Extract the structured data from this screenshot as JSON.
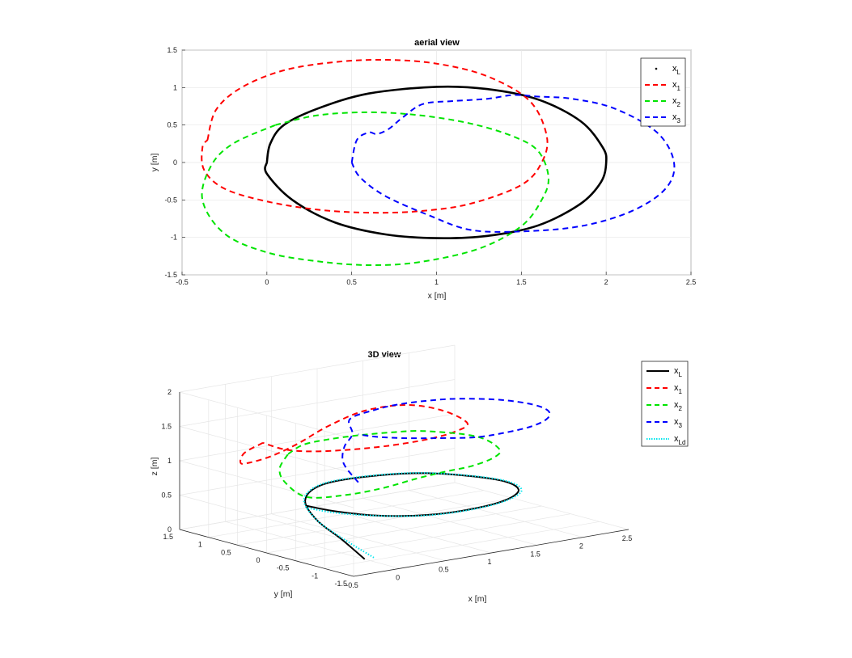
{
  "chart_data": [
    {
      "type": "line",
      "title": "aerial view",
      "xlabel": "x [m]",
      "ylabel": "y [m]",
      "xlim": [
        -0.5,
        2.5
      ],
      "ylim": [
        -1.5,
        1.5
      ],
      "xticks": [
        "-0.5",
        "0",
        "0.5",
        "1",
        "1.5",
        "2",
        "2.5"
      ],
      "yticks": [
        "-1.5",
        "-1",
        "-0.5",
        "0",
        "0.5",
        "1",
        "1.5"
      ],
      "grid": true,
      "legend_position": "top-right",
      "series": [
        {
          "name": "x",
          "sub": "L",
          "color": "#000000",
          "style": "solid-dots",
          "points": [
            [
              0,
              0
            ],
            [
              0.02,
              0.25
            ],
            [
              0.1,
              0.5
            ],
            [
              0.3,
              0.72
            ],
            [
              0.6,
              0.92
            ],
            [
              1.0,
              1.01
            ],
            [
              1.3,
              0.98
            ],
            [
              1.6,
              0.84
            ],
            [
              1.85,
              0.55
            ],
            [
              1.98,
              0.2
            ],
            [
              2.0,
              0.0
            ],
            [
              1.97,
              -0.26
            ],
            [
              1.85,
              -0.55
            ],
            [
              1.6,
              -0.84
            ],
            [
              1.3,
              -0.98
            ],
            [
              1.0,
              -1.01
            ],
            [
              0.7,
              -0.96
            ],
            [
              0.4,
              -0.8
            ],
            [
              0.15,
              -0.5
            ],
            [
              0.0,
              -0.15
            ],
            [
              0.0,
              0.0
            ]
          ]
        },
        {
          "name": "x",
          "sub": "1",
          "color": "#ff0000",
          "style": "dashed",
          "points": [
            [
              -0.35,
              0.3
            ],
            [
              -0.3,
              0.7
            ],
            [
              -0.15,
              1.0
            ],
            [
              0.1,
              1.23
            ],
            [
              0.4,
              1.34
            ],
            [
              0.7,
              1.37
            ],
            [
              1.0,
              1.32
            ],
            [
              1.3,
              1.15
            ],
            [
              1.55,
              0.82
            ],
            [
              1.65,
              0.35
            ],
            [
              1.62,
              0.0
            ],
            [
              1.5,
              -0.3
            ],
            [
              1.2,
              -0.55
            ],
            [
              0.9,
              -0.65
            ],
            [
              0.6,
              -0.67
            ],
            [
              0.3,
              -0.63
            ],
            [
              0.0,
              -0.52
            ],
            [
              -0.25,
              -0.35
            ],
            [
              -0.37,
              -0.1
            ],
            [
              -0.38,
              0.2
            ],
            [
              -0.35,
              0.3
            ]
          ]
        },
        {
          "name": "x",
          "sub": "2",
          "color": "#00e400",
          "style": "dashed",
          "points": [
            [
              0.05,
              0.5
            ],
            [
              0.3,
              0.63
            ],
            [
              0.6,
              0.67
            ],
            [
              0.9,
              0.63
            ],
            [
              1.2,
              0.52
            ],
            [
              1.45,
              0.35
            ],
            [
              1.6,
              0.15
            ],
            [
              1.66,
              -0.2
            ],
            [
              1.62,
              -0.5
            ],
            [
              1.5,
              -0.85
            ],
            [
              1.25,
              -1.15
            ],
            [
              0.9,
              -1.33
            ],
            [
              0.6,
              -1.37
            ],
            [
              0.3,
              -1.32
            ],
            [
              0.0,
              -1.2
            ],
            [
              -0.25,
              -0.95
            ],
            [
              -0.38,
              -0.5
            ],
            [
              -0.33,
              -0.05
            ],
            [
              -0.2,
              0.25
            ],
            [
              0.05,
              0.5
            ]
          ]
        },
        {
          "name": "x",
          "sub": "3",
          "color": "#0000ff",
          "style": "dashed",
          "points": [
            [
              0.5,
              0.0
            ],
            [
              0.53,
              0.3
            ],
            [
              0.6,
              0.4
            ],
            [
              0.65,
              0.38
            ],
            [
              0.72,
              0.45
            ],
            [
              0.8,
              0.6
            ],
            [
              0.92,
              0.78
            ],
            [
              1.1,
              0.82
            ],
            [
              1.3,
              0.85
            ],
            [
              1.45,
              0.9
            ],
            [
              1.6,
              0.88
            ],
            [
              1.8,
              0.85
            ],
            [
              2.05,
              0.72
            ],
            [
              2.3,
              0.4
            ],
            [
              2.4,
              0.0
            ],
            [
              2.35,
              -0.35
            ],
            [
              2.15,
              -0.65
            ],
            [
              1.85,
              -0.85
            ],
            [
              1.5,
              -0.92
            ],
            [
              1.2,
              -0.9
            ],
            [
              0.95,
              -0.7
            ],
            [
              0.7,
              -0.45
            ],
            [
              0.55,
              -0.2
            ],
            [
              0.5,
              0.0
            ]
          ]
        }
      ]
    },
    {
      "type": "line",
      "title": "3D view",
      "xlabel": "x [m]",
      "ylabel": "y [m]",
      "zlabel": "z [m]",
      "xticks": [
        "-0.5",
        "0",
        "0.5",
        "1",
        "1.5",
        "2",
        "2.5"
      ],
      "yticks": [
        "1.5",
        "1",
        "0.5",
        "0",
        "-0.5",
        "-1",
        "-1.5"
      ],
      "zticks": [
        "0",
        "0.5",
        "1",
        "1.5",
        "2"
      ],
      "xlim": [
        -0.5,
        2.5
      ],
      "ylim": [
        -1.5,
        1.5
      ],
      "zlim": [
        0,
        2
      ],
      "grid": true,
      "legend_position": "top-right",
      "series": [
        {
          "name": "x",
          "sub": "L",
          "color": "#000000",
          "style": "solid",
          "points": [
            [
              0,
              -0.9,
              0.0
            ],
            [
              0.0,
              -0.5,
              0.2
            ],
            [
              0.05,
              0,
              0.35
            ],
            [
              0.3,
              0.6,
              0.45
            ],
            [
              0.7,
              0.95,
              0.5
            ],
            [
              1.2,
              0.98,
              0.5
            ],
            [
              1.7,
              0.7,
              0.5
            ],
            [
              2.0,
              0.0,
              0.5
            ],
            [
              1.9,
              -0.55,
              0.5
            ],
            [
              1.5,
              -0.9,
              0.5
            ],
            [
              1.0,
              -1.0,
              0.5
            ],
            [
              0.6,
              -0.9,
              0.5
            ],
            [
              0.3,
              -0.6,
              0.5
            ],
            [
              0.1,
              -0.2,
              0.52
            ],
            [
              0.0,
              0.1,
              0.55
            ]
          ]
        },
        {
          "name": "x",
          "sub": "1",
          "color": "#ff0000",
          "style": "dashed",
          "points": [
            [
              -0.35,
              0.3,
              1.5
            ],
            [
              -0.3,
              0.7,
              1.25
            ],
            [
              -0.15,
              1.0,
              1.0
            ],
            [
              0.1,
              1.23,
              0.9
            ],
            [
              0.4,
              1.34,
              0.9
            ],
            [
              0.7,
              1.37,
              1.0
            ],
            [
              1.0,
              1.32,
              1.2
            ],
            [
              1.3,
              1.15,
              1.4
            ],
            [
              1.55,
              0.82,
              1.5
            ],
            [
              1.65,
              0.35,
              1.5
            ],
            [
              1.5,
              -0.3,
              1.5
            ],
            [
              1.2,
              -0.55,
              1.5
            ],
            [
              0.9,
              -0.65,
              1.5
            ],
            [
              0.6,
              -0.67,
              1.5
            ],
            [
              0.3,
              -0.63,
              1.5
            ],
            [
              0.0,
              -0.52,
              1.5
            ],
            [
              -0.25,
              -0.35,
              1.5
            ],
            [
              -0.37,
              -0.1,
              1.5
            ],
            [
              -0.35,
              0.3,
              1.5
            ]
          ]
        },
        {
          "name": "x",
          "sub": "2",
          "color": "#00e400",
          "style": "dashed",
          "points": [
            [
              0.05,
              0.5,
              1.2
            ],
            [
              0.3,
              0.63,
              1.25
            ],
            [
              0.6,
              0.67,
              1.25
            ],
            [
              0.9,
              0.63,
              1.25
            ],
            [
              1.2,
              0.52,
              1.25
            ],
            [
              1.45,
              0.35,
              1.25
            ],
            [
              1.66,
              -0.2,
              1.25
            ],
            [
              1.5,
              -0.85,
              1.25
            ],
            [
              1.25,
              -1.15,
              1.25
            ],
            [
              0.9,
              -1.33,
              1.25
            ],
            [
              0.6,
              -1.37,
              1.25
            ],
            [
              0.3,
              -1.32,
              1.2
            ],
            [
              0.0,
              -1.2,
              1.1
            ],
            [
              -0.25,
              -0.95,
              1.0
            ],
            [
              -0.38,
              -0.5,
              0.9
            ],
            [
              -0.33,
              -0.05,
              1.0
            ],
            [
              -0.2,
              0.25,
              1.1
            ],
            [
              0.05,
              0.5,
              1.2
            ]
          ]
        },
        {
          "name": "x",
          "sub": "3",
          "color": "#0000ff",
          "style": "dashed",
          "points": [
            [
              0.5,
              0.0,
              0.8
            ],
            [
              0.53,
              0.3,
              1.0
            ],
            [
              0.6,
              0.4,
              1.2
            ],
            [
              0.72,
              0.45,
              1.35
            ],
            [
              0.9,
              0.78,
              1.45
            ],
            [
              1.2,
              0.84,
              1.5
            ],
            [
              1.5,
              0.9,
              1.5
            ],
            [
              1.8,
              0.85,
              1.5
            ],
            [
              2.05,
              0.72,
              1.5
            ],
            [
              2.3,
              0.4,
              1.5
            ],
            [
              2.4,
              0.0,
              1.5
            ],
            [
              2.35,
              -0.35,
              1.5
            ],
            [
              2.15,
              -0.65,
              1.5
            ],
            [
              1.85,
              -0.85,
              1.5
            ],
            [
              1.5,
              -0.92,
              1.5
            ],
            [
              1.2,
              -0.9,
              1.5
            ],
            [
              0.95,
              -0.7,
              1.5
            ],
            [
              0.7,
              -0.45,
              1.5
            ],
            [
              0.55,
              -0.2,
              1.5
            ],
            [
              0.5,
              0.0,
              1.5
            ]
          ]
        },
        {
          "name": "x",
          "sub": "Ld",
          "color": "#00e5ee",
          "style": "dotted",
          "points": [
            [
              0.1,
              -0.9,
              0.0
            ],
            [
              0.02,
              -0.5,
              0.2
            ],
            [
              0.05,
              0,
              0.35
            ],
            [
              0.3,
              0.62,
              0.45
            ],
            [
              0.7,
              0.97,
              0.5
            ],
            [
              1.2,
              1.0,
              0.5
            ],
            [
              1.7,
              0.72,
              0.5
            ],
            [
              2.02,
              0.0,
              0.5
            ],
            [
              1.92,
              -0.57,
              0.5
            ],
            [
              1.5,
              -0.92,
              0.5
            ],
            [
              1.0,
              -1.02,
              0.5
            ],
            [
              0.6,
              -0.92,
              0.5
            ],
            [
              0.3,
              -0.62,
              0.5
            ],
            [
              0.1,
              -0.22,
              0.5
            ],
            [
              0.0,
              0.1,
              0.52
            ]
          ]
        }
      ]
    }
  ]
}
